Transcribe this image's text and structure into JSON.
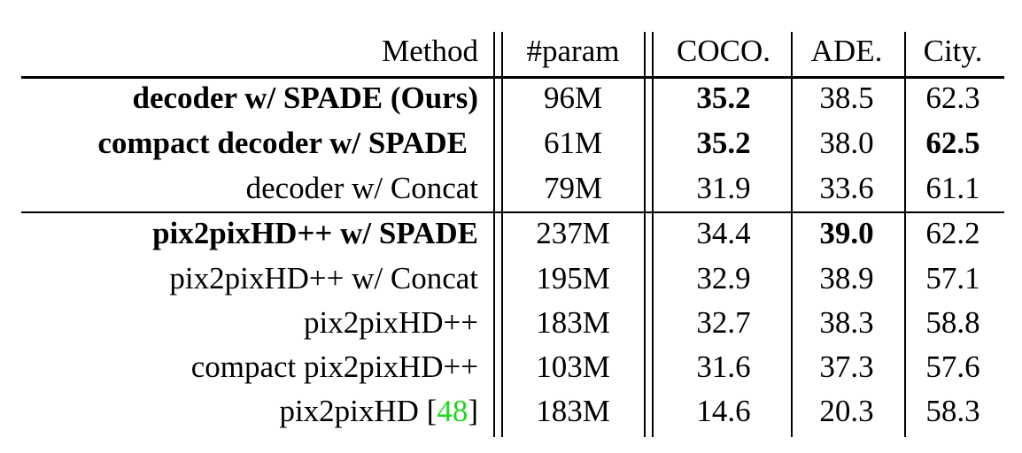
{
  "header": {
    "method": "Method",
    "param": "#param",
    "coco": "COCO.",
    "ade": "ADE.",
    "city": "City."
  },
  "rows": [
    {
      "method": "decoder w/ SPADE (Ours)",
      "param": "96M",
      "coco": "35.2",
      "ade": "38.5",
      "city": "62.3"
    },
    {
      "method": "compact decoder w/ SPADE",
      "param": "61M",
      "coco": "35.2",
      "ade": "38.0",
      "city": "62.5"
    },
    {
      "method": "decoder w/ Concat",
      "param": "79M",
      "coco": "31.9",
      "ade": "33.6",
      "city": "61.1"
    },
    {
      "method": "pix2pixHD++ w/ SPADE",
      "param": "237M",
      "coco": "34.4",
      "ade": "39.0",
      "city": "62.2"
    },
    {
      "method": "pix2pixHD++ w/ Concat",
      "param": "195M",
      "coco": "32.9",
      "ade": "38.9",
      "city": "57.1"
    },
    {
      "method": "pix2pixHD++",
      "param": "183M",
      "coco": "32.7",
      "ade": "38.3",
      "city": "58.8"
    },
    {
      "method": "compact pix2pixHD++",
      "param": "103M",
      "coco": "31.6",
      "ade": "37.3",
      "city": "57.6"
    },
    {
      "method": "pix2pixHD",
      "cite": "48",
      "param": "183M",
      "coco": "14.6",
      "ade": "20.3",
      "city": "58.3"
    }
  ],
  "colors": {
    "citation": "#1fd61f",
    "text": "#000000"
  }
}
